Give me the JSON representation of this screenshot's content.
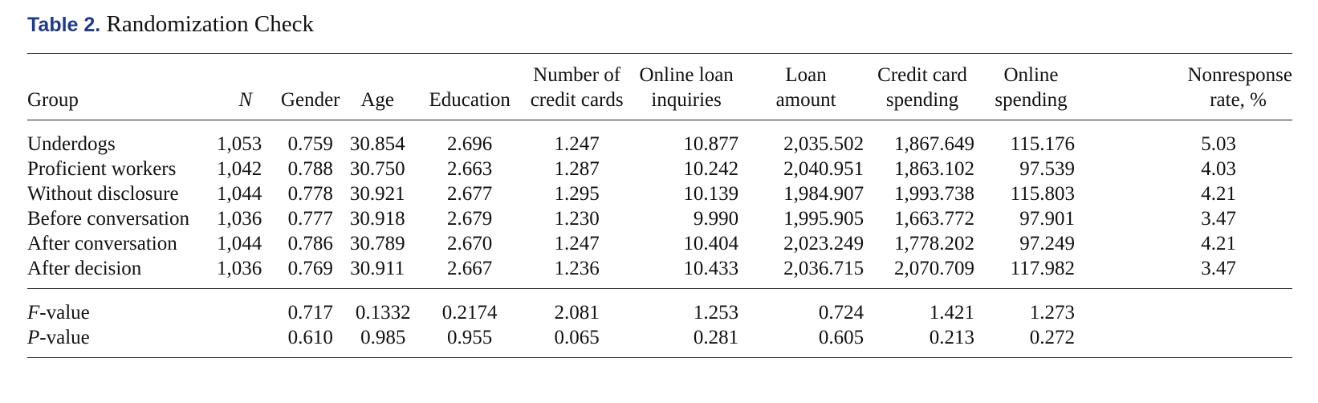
{
  "caption": {
    "label": "Table 2.",
    "title": "Randomization Check"
  },
  "headers": {
    "group": "Group",
    "n": "N",
    "gender": "Gender",
    "age": "Age",
    "education": "Education",
    "credit_cards_1": "Number of",
    "credit_cards_2": "credit cards",
    "loan_inquiries_1": "Online loan",
    "loan_inquiries_2": "inquiries",
    "loan_amount_1": "Loan",
    "loan_amount_2": "amount",
    "cc_spending_1": "Credit card",
    "cc_spending_2": "spending",
    "online_spending_1": "Online",
    "online_spending_2": "spending",
    "nonresponse_1": "Nonresponse",
    "nonresponse_2": "rate, %"
  },
  "rows": [
    {
      "group": "Underdogs",
      "n": "1,053",
      "gender": "0.759",
      "age": "30.854",
      "education": "2.696",
      "credit_cards": "1.247",
      "loan_inquiries": "10.877",
      "loan_amount": "2,035.502",
      "cc_spending": "1,867.649",
      "online_spending": "115.176",
      "nonresponse": "5.03"
    },
    {
      "group": "Proficient workers",
      "n": "1,042",
      "gender": "0.788",
      "age": "30.750",
      "education": "2.663",
      "credit_cards": "1.287",
      "loan_inquiries": "10.242",
      "loan_amount": "2,040.951",
      "cc_spending": "1,863.102",
      "online_spending": "97.539",
      "nonresponse": "4.03"
    },
    {
      "group": "Without disclosure",
      "n": "1,044",
      "gender": "0.778",
      "age": "30.921",
      "education": "2.677",
      "credit_cards": "1.295",
      "loan_inquiries": "10.139",
      "loan_amount": "1,984.907",
      "cc_spending": "1,993.738",
      "online_spending": "115.803",
      "nonresponse": "4.21"
    },
    {
      "group": "Before conversation",
      "n": "1,036",
      "gender": "0.777",
      "age": "30.918",
      "education": "2.679",
      "credit_cards": "1.230",
      "loan_inquiries": "9.990",
      "loan_amount": "1,995.905",
      "cc_spending": "1,663.772",
      "online_spending": "97.901",
      "nonresponse": "3.47"
    },
    {
      "group": "After conversation",
      "n": "1,044",
      "gender": "0.786",
      "age": "30.789",
      "education": "2.670",
      "credit_cards": "1.247",
      "loan_inquiries": "10.404",
      "loan_amount": "2,023.249",
      "cc_spending": "1,778.202",
      "online_spending": "97.249",
      "nonresponse": "4.21"
    },
    {
      "group": "After decision",
      "n": "1,036",
      "gender": "0.769",
      "age": "30.911",
      "education": "2.667",
      "credit_cards": "1.236",
      "loan_inquiries": "10.433",
      "loan_amount": "2,036.715",
      "cc_spending": "2,070.709",
      "online_spending": "117.982",
      "nonresponse": "3.47"
    }
  ],
  "stats": [
    {
      "label_italic": "F",
      "label_rest": "-value",
      "gender": "0.717",
      "age": "0.1332",
      "education": "0.2174",
      "credit_cards": "2.081",
      "loan_inquiries": "1.253",
      "loan_amount": "0.724",
      "cc_spending": "1.421",
      "online_spending": "1.273"
    },
    {
      "label_italic": "P",
      "label_rest": "-value",
      "gender": "0.610",
      "age": "0.985",
      "education": "0.955",
      "credit_cards": "0.065",
      "loan_inquiries": "0.281",
      "loan_amount": "0.605",
      "cc_spending": "0.213",
      "online_spending": "0.272"
    }
  ]
}
